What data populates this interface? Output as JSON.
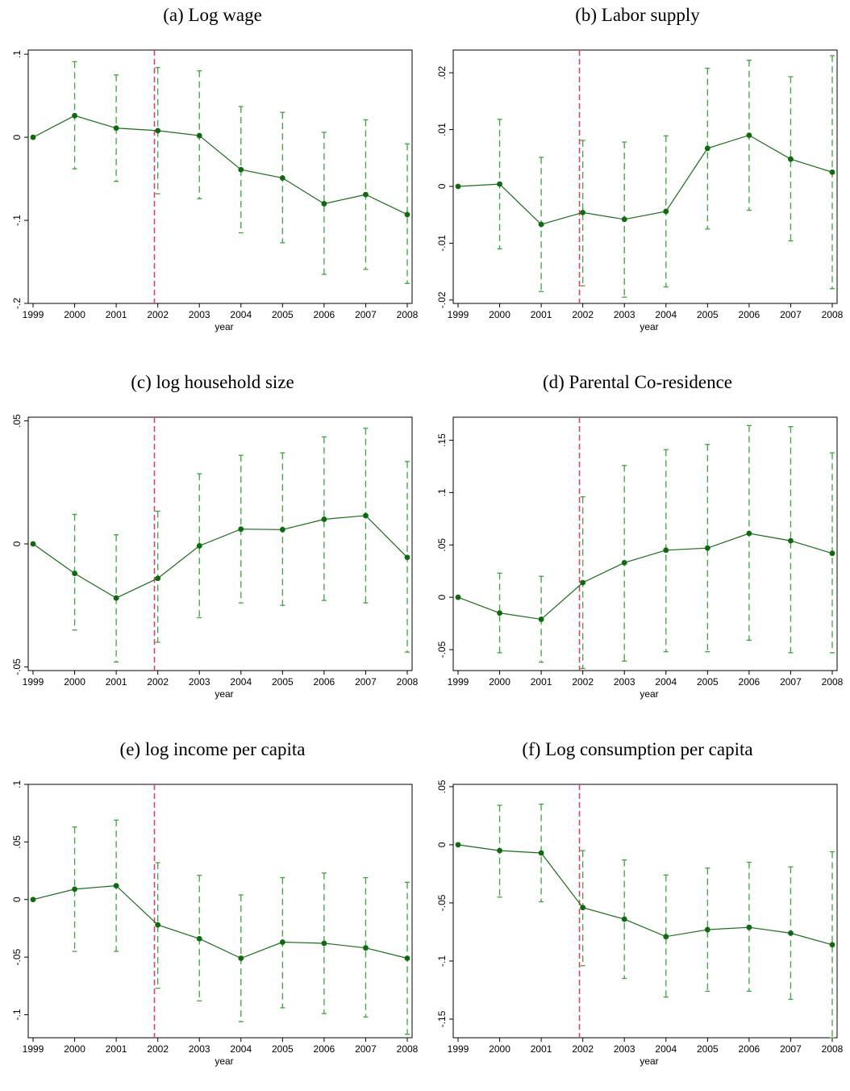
{
  "colors": {
    "line": "#1a6b1a",
    "point": "#0d6b0d",
    "ci": "#3aa63a",
    "vline": "#e0406a",
    "frame": "#000000"
  },
  "chart_data": [
    {
      "id": "a",
      "type": "line",
      "title": "(a) Log wage",
      "xlabel": "year",
      "x": [
        1999,
        2000,
        2001,
        2002,
        2003,
        2004,
        2005,
        2006,
        2007,
        2008
      ],
      "y": [
        0,
        0.026,
        0.011,
        0.008,
        0.002,
        -0.039,
        -0.049,
        -0.08,
        -0.069,
        -0.093
      ],
      "ci_low": [
        0,
        -0.038,
        -0.053,
        -0.068,
        -0.074,
        -0.115,
        -0.127,
        -0.165,
        -0.159,
        -0.176
      ],
      "ci_high": [
        0,
        0.091,
        0.075,
        0.084,
        0.08,
        0.037,
        0.03,
        0.006,
        0.021,
        -0.008
      ],
      "ylim": [
        -0.2,
        0.105
      ],
      "yticks": [
        0.1,
        0,
        -0.1,
        -0.2
      ],
      "ytick_labels": [
        ".1",
        "0",
        "-.1",
        "-.2"
      ],
      "vline": 2001.92
    },
    {
      "id": "b",
      "type": "line",
      "title": "(b) Labor supply",
      "xlabel": "year",
      "x": [
        1999,
        2000,
        2001,
        2002,
        2003,
        2004,
        2005,
        2006,
        2007,
        2008
      ],
      "y": [
        0,
        0.0004,
        -0.0067,
        -0.0046,
        -0.0058,
        -0.0044,
        0.0067,
        0.009,
        0.0048,
        0.0025
      ],
      "ci_low": [
        0,
        -0.011,
        -0.0185,
        -0.0175,
        -0.0195,
        -0.0177,
        -0.0075,
        -0.0042,
        -0.0096,
        -0.018
      ],
      "ci_high": [
        0,
        0.0118,
        0.0051,
        0.0081,
        0.0078,
        0.0089,
        0.0208,
        0.0222,
        0.0193,
        0.023
      ],
      "ylim": [
        -0.0206,
        0.024
      ],
      "yticks": [
        0.02,
        0.01,
        0,
        -0.01,
        -0.02
      ],
      "ytick_labels": [
        ".02",
        ".01",
        "0",
        "-.01",
        "-.02"
      ],
      "vline": 2001.92
    },
    {
      "id": "c",
      "type": "line",
      "title": "(c) log household size",
      "xlabel": "year",
      "x": [
        1999,
        2000,
        2001,
        2002,
        2003,
        2004,
        2005,
        2006,
        2007,
        2008
      ],
      "y": [
        0,
        -0.012,
        -0.022,
        -0.014,
        -0.0008,
        0.006,
        0.0058,
        0.01,
        0.0115,
        -0.0055
      ],
      "ci_low": [
        0,
        -0.035,
        -0.048,
        -0.04,
        -0.03,
        -0.024,
        -0.025,
        -0.023,
        -0.024,
        -0.044
      ],
      "ci_high": [
        0,
        0.012,
        0.0037,
        0.0133,
        0.0285,
        0.036,
        0.037,
        0.0435,
        0.047,
        0.0335
      ],
      "ylim": [
        -0.0515,
        0.0515
      ],
      "yticks": [
        0.05,
        0,
        -0.05
      ],
      "ytick_labels": [
        ".05",
        "0",
        "-.05"
      ],
      "vline": 2001.92
    },
    {
      "id": "d",
      "type": "line",
      "title": "(d) Parental Co-residence",
      "xlabel": "year",
      "x": [
        1999,
        2000,
        2001,
        2002,
        2003,
        2004,
        2005,
        2006,
        2007,
        2008
      ],
      "y": [
        0,
        -0.015,
        -0.021,
        0.014,
        0.033,
        0.045,
        0.047,
        0.061,
        0.054,
        0.042
      ],
      "ci_low": [
        0,
        -0.053,
        -0.062,
        -0.068,
        -0.061,
        -0.052,
        -0.052,
        -0.041,
        -0.053,
        -0.053
      ],
      "ci_high": [
        0,
        0.023,
        0.02,
        0.096,
        0.126,
        0.141,
        0.146,
        0.164,
        0.163,
        0.138
      ],
      "ylim": [
        -0.07,
        0.172
      ],
      "yticks": [
        0.15,
        0.1,
        0.05,
        0,
        -0.05
      ],
      "ytick_labels": [
        ".15",
        ".1",
        ".05",
        "0",
        "-.05"
      ],
      "vline": 2001.92
    },
    {
      "id": "e",
      "type": "line",
      "title": "(e) log income per capita",
      "xlabel": "year",
      "x": [
        1999,
        2000,
        2001,
        2002,
        2003,
        2004,
        2005,
        2006,
        2007,
        2008
      ],
      "y": [
        0,
        0.009,
        0.012,
        -0.022,
        -0.034,
        -0.051,
        -0.037,
        -0.038,
        -0.042,
        -0.051
      ],
      "ci_low": [
        0,
        -0.045,
        -0.045,
        -0.077,
        -0.088,
        -0.106,
        -0.094,
        -0.099,
        -0.102,
        -0.117
      ],
      "ci_high": [
        0,
        0.063,
        0.069,
        0.032,
        0.021,
        0.004,
        0.019,
        0.023,
        0.019,
        0.015
      ],
      "ylim": [
        -0.12,
        0.1
      ],
      "yticks": [
        0.1,
        0.05,
        0,
        -0.05,
        -0.1
      ],
      "ytick_labels": [
        ".1",
        ".05",
        "0",
        "-.05",
        "-.1"
      ],
      "vline": 2001.92
    },
    {
      "id": "f",
      "type": "line",
      "title": "(f) Log consumption per capita",
      "xlabel": "year",
      "x": [
        1999,
        2000,
        2001,
        2002,
        2003,
        2004,
        2005,
        2006,
        2007,
        2008
      ],
      "y": [
        0,
        -0.005,
        -0.007,
        -0.054,
        -0.064,
        -0.079,
        -0.073,
        -0.071,
        -0.076,
        -0.086
      ],
      "ci_low": [
        0,
        -0.045,
        -0.049,
        -0.104,
        -0.115,
        -0.131,
        -0.126,
        -0.126,
        -0.133,
        -0.166
      ],
      "ci_high": [
        0,
        0.034,
        0.035,
        -0.005,
        -0.013,
        -0.026,
        -0.02,
        -0.015,
        -0.019,
        -0.006
      ],
      "ylim": [
        -0.166,
        0.052
      ],
      "yticks": [
        0.05,
        0,
        -0.05,
        -0.1,
        -0.15
      ],
      "ytick_labels": [
        ".05",
        "0",
        "-.05",
        "-.1",
        "-.15"
      ],
      "vline": 2001.92
    }
  ]
}
